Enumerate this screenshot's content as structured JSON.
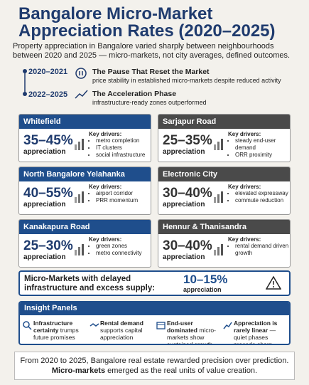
{
  "header": {
    "title": "Bangalore Micro-Market Appreciation Rates (2020–2025)",
    "subtitle": "Property appreciation in Bangalore varied sharply between neighbourhoods between 2020 and 2025 — micro-markets, not city averages, defined outcomes."
  },
  "timeline": [
    {
      "period": "2020–2021",
      "heading": "The Pause That Reset the Market",
      "text": "price stability in established micro-markets despite reduced activity"
    },
    {
      "period": "2022–2025",
      "heading": "The Acceleration Phase",
      "text": "infrastructure-ready zones outperformed"
    }
  ],
  "markets": [
    {
      "name": "Whitefield",
      "range": "35–45%",
      "unit": "appreciation",
      "drivers_label": "Key drivers:",
      "drivers": [
        "metro completion",
        "IT clusters",
        "social infrastructure"
      ]
    },
    {
      "name": "Sarjapur Road",
      "range": "25–35%",
      "unit": "appreciation",
      "drivers_label": "Key drivers:",
      "drivers": [
        "steady end-user demand",
        "ORR proximity"
      ]
    },
    {
      "name": "North Bangalore Yelahanka",
      "range": "40–55%",
      "unit": "appreciation",
      "drivers_label": "Key drivers:",
      "drivers": [
        "airport corridor",
        "PRR momentum"
      ]
    },
    {
      "name": "Electronic City",
      "range": "30–40%",
      "unit": "appreciation",
      "drivers_label": "Key drivers:",
      "drivers": [
        "elevated expressway",
        "commute reduction"
      ]
    },
    {
      "name": "Kanakapura Road",
      "range": "25–30%",
      "unit": "appreciation",
      "drivers_label": "Key drivers:",
      "drivers": [
        "green zones",
        "metro connectivity"
      ]
    },
    {
      "name": "Hennur & Thanisandra",
      "range": "30–40%",
      "unit": "appreciation",
      "drivers_label": "Key drivers:",
      "drivers": [
        "rental demand driven growth"
      ]
    }
  ],
  "delayed": {
    "label": "Micro-Markets with delayed infrastructure and excess supply:",
    "range": "10–15%",
    "unit": "appreciation"
  },
  "insights": {
    "title": "Insight Panels",
    "items": [
      {
        "bold": "Infrastructure certainty",
        "text": " trumps future promises"
      },
      {
        "bold": "Rental demand",
        "text": " supports capital appreciation"
      },
      {
        "bold": "End-user dominated",
        "text": " micro-markets show sustained growth"
      },
      {
        "bold": "Appreciation is rarely linear",
        "text": " — quiet phases precede sharp upcycles"
      }
    ]
  },
  "footer": {
    "line1": "From 2020 to 2025, Bangalore real estate rewarded precision over prediction.",
    "bold": "Micro-markets",
    "line2": " emerged as the real units of value creation."
  }
}
